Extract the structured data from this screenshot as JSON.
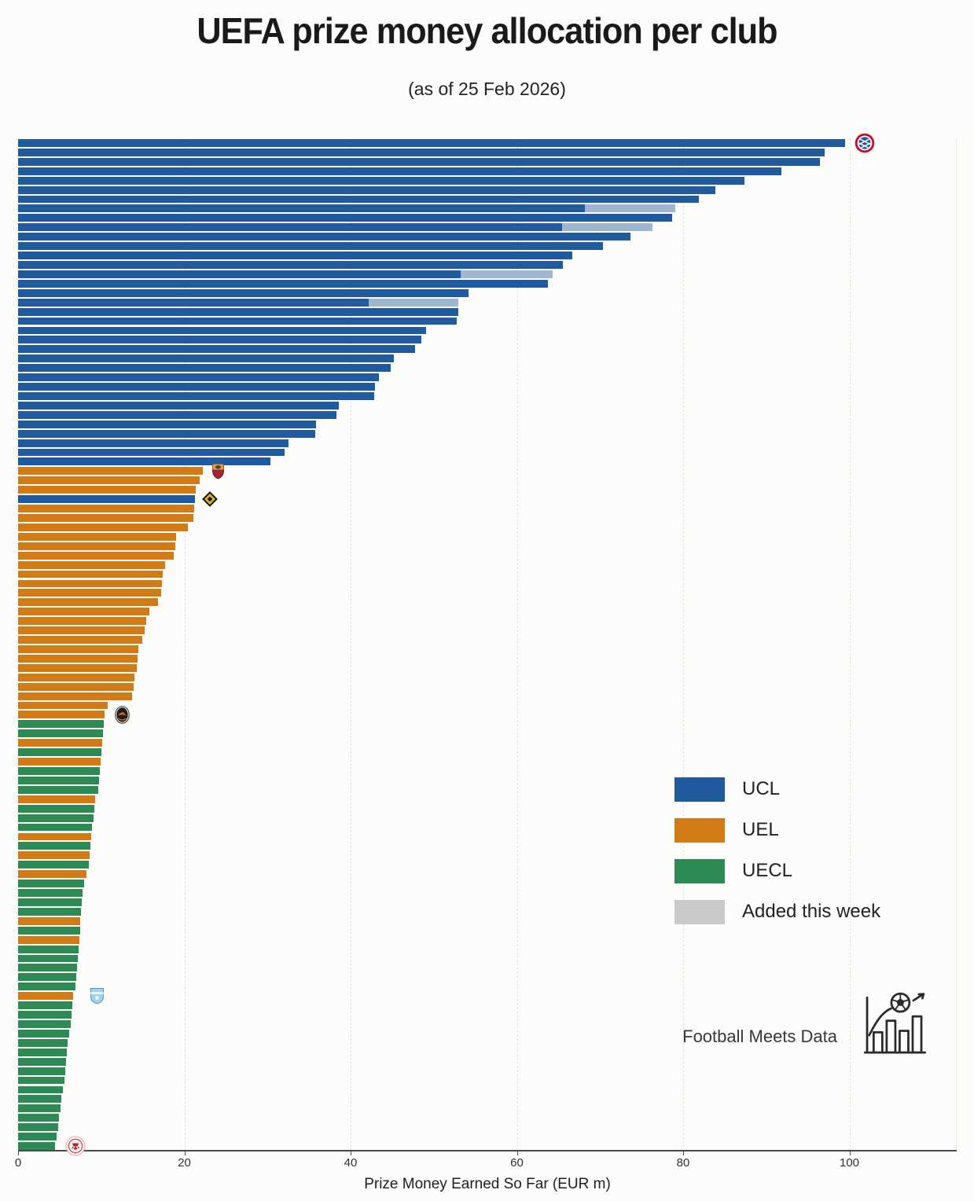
{
  "branding": {
    "label": "Football Meets Data"
  },
  "chart_data": {
    "type": "bar",
    "orientation": "horizontal",
    "title": "UEFA prize money allocation per club",
    "subtitle": "(as of 25 Feb 2026)",
    "xlabel": "Prize Money Earned So Far (EUR m)",
    "value_unit": "EUR m",
    "xlim": [
      0,
      113
    ],
    "x_ticks": [
      0,
      20,
      40,
      60,
      80,
      100
    ],
    "grid": "vertical-dashed",
    "legend_position": "center-right",
    "legend": [
      {
        "label": "UCL",
        "color": "#1f5b9e"
      },
      {
        "label": "UEL",
        "color": "#d07b15"
      },
      {
        "label": "UECL",
        "color": "#2d8a55"
      },
      {
        "label": "Added this week",
        "color": "#c9c9c9"
      }
    ],
    "colors": {
      "UCL": "#1f5b9e",
      "UEL": "#d07b15",
      "UECL": "#2d8a55",
      "added_segment_on_bar": "#9fb6d2",
      "added_legend_swatch": "#c9c9c9"
    },
    "bars": [
      {
        "competition": "UCL",
        "value": 99.5,
        "crest": "bayern-munich"
      },
      {
        "competition": "UCL",
        "value": 97.0
      },
      {
        "competition": "UCL",
        "value": 96.5
      },
      {
        "competition": "UCL",
        "value": 91.8
      },
      {
        "competition": "UCL",
        "value": 87.4
      },
      {
        "competition": "UCL",
        "value": 83.9
      },
      {
        "competition": "UCL",
        "value": 81.9
      },
      {
        "competition": "UCL",
        "value": 68.2,
        "added": 10.9
      },
      {
        "competition": "UCL",
        "value": 78.7
      },
      {
        "competition": "UCL",
        "value": 65.4,
        "added": 10.9
      },
      {
        "competition": "UCL",
        "value": 73.7
      },
      {
        "competition": "UCL",
        "value": 70.4
      },
      {
        "competition": "UCL",
        "value": 66.7
      },
      {
        "competition": "UCL",
        "value": 65.5
      },
      {
        "competition": "UCL",
        "value": 53.2,
        "added": 11.1
      },
      {
        "competition": "UCL",
        "value": 63.7
      },
      {
        "competition": "UCL",
        "value": 54.2
      },
      {
        "competition": "UCL",
        "value": 42.2,
        "added": 10.8
      },
      {
        "competition": "UCL",
        "value": 53.0
      },
      {
        "competition": "UCL",
        "value": 52.8
      },
      {
        "competition": "UCL",
        "value": 49.1
      },
      {
        "competition": "UCL",
        "value": 48.5
      },
      {
        "competition": "UCL",
        "value": 47.8
      },
      {
        "competition": "UCL",
        "value": 45.2
      },
      {
        "competition": "UCL",
        "value": 44.8
      },
      {
        "competition": "UCL",
        "value": 43.4
      },
      {
        "competition": "UCL",
        "value": 42.9
      },
      {
        "competition": "UCL",
        "value": 42.8
      },
      {
        "competition": "UCL",
        "value": 38.6
      },
      {
        "competition": "UCL",
        "value": 38.3
      },
      {
        "competition": "UCL",
        "value": 35.8
      },
      {
        "competition": "UCL",
        "value": 35.7
      },
      {
        "competition": "UCL",
        "value": 32.5
      },
      {
        "competition": "UCL",
        "value": 32.1
      },
      {
        "competition": "UCL",
        "value": 30.4
      },
      {
        "competition": "UEL",
        "value": 22.2,
        "crest": "as-roma"
      },
      {
        "competition": "UEL",
        "value": 21.8
      },
      {
        "competition": "UEL",
        "value": 21.4
      },
      {
        "competition": "UCL",
        "value": 21.3,
        "crest": "gold-diamond-club"
      },
      {
        "competition": "UEL",
        "value": 21.2
      },
      {
        "competition": "UEL",
        "value": 21.1
      },
      {
        "competition": "UEL",
        "value": 20.4
      },
      {
        "competition": "UEL",
        "value": 19.0
      },
      {
        "competition": "UEL",
        "value": 18.9
      },
      {
        "competition": "UEL",
        "value": 18.7
      },
      {
        "competition": "UEL",
        "value": 17.7
      },
      {
        "competition": "UEL",
        "value": 17.4
      },
      {
        "competition": "UEL",
        "value": 17.3
      },
      {
        "competition": "UEL",
        "value": 17.2
      },
      {
        "competition": "UEL",
        "value": 16.8
      },
      {
        "competition": "UEL",
        "value": 15.8
      },
      {
        "competition": "UEL",
        "value": 15.4
      },
      {
        "competition": "UEL",
        "value": 15.2
      },
      {
        "competition": "UEL",
        "value": 14.9
      },
      {
        "competition": "UEL",
        "value": 14.5
      },
      {
        "competition": "UEL",
        "value": 14.4
      },
      {
        "competition": "UEL",
        "value": 14.3
      },
      {
        "competition": "UEL",
        "value": 14.0
      },
      {
        "competition": "UEL",
        "value": 13.9
      },
      {
        "competition": "UEL",
        "value": 13.7
      },
      {
        "competition": "UEL",
        "value": 10.8
      },
      {
        "competition": "UEL",
        "value": 10.4,
        "crest": "shakhtar-donetsk"
      },
      {
        "competition": "UECL",
        "value": 10.3
      },
      {
        "competition": "UECL",
        "value": 10.2
      },
      {
        "competition": "UEL",
        "value": 10.1
      },
      {
        "competition": "UECL",
        "value": 10.0
      },
      {
        "competition": "UEL",
        "value": 9.9
      },
      {
        "competition": "UECL",
        "value": 9.8
      },
      {
        "competition": "UECL",
        "value": 9.7
      },
      {
        "competition": "UECL",
        "value": 9.6
      },
      {
        "competition": "UEL",
        "value": 9.3
      },
      {
        "competition": "UECL",
        "value": 9.2
      },
      {
        "competition": "UECL",
        "value": 9.1
      },
      {
        "competition": "UECL",
        "value": 8.9
      },
      {
        "competition": "UEL",
        "value": 8.8
      },
      {
        "competition": "UECL",
        "value": 8.7
      },
      {
        "competition": "UEL",
        "value": 8.6
      },
      {
        "competition": "UECL",
        "value": 8.5
      },
      {
        "competition": "UEL",
        "value": 8.2
      },
      {
        "competition": "UECL",
        "value": 7.9
      },
      {
        "competition": "UECL",
        "value": 7.8
      },
      {
        "competition": "UECL",
        "value": 7.7
      },
      {
        "competition": "UECL",
        "value": 7.6
      },
      {
        "competition": "UEL",
        "value": 7.5
      },
      {
        "competition": "UECL",
        "value": 7.5
      },
      {
        "competition": "UEL",
        "value": 7.4
      },
      {
        "competition": "UECL",
        "value": 7.3
      },
      {
        "competition": "UECL",
        "value": 7.2
      },
      {
        "competition": "UECL",
        "value": 7.1
      },
      {
        "competition": "UECL",
        "value": 7.0
      },
      {
        "competition": "UECL",
        "value": 6.9
      },
      {
        "competition": "UEL",
        "value": 6.6,
        "crest": "malmo-ff"
      },
      {
        "competition": "UECL",
        "value": 6.5
      },
      {
        "competition": "UECL",
        "value": 6.4
      },
      {
        "competition": "UECL",
        "value": 6.3
      },
      {
        "competition": "UECL",
        "value": 6.1
      },
      {
        "competition": "UECL",
        "value": 6.0
      },
      {
        "competition": "UECL",
        "value": 5.9
      },
      {
        "competition": "UECL",
        "value": 5.8
      },
      {
        "competition": "UECL",
        "value": 5.7
      },
      {
        "competition": "UECL",
        "value": 5.6
      },
      {
        "competition": "UECL",
        "value": 5.4
      },
      {
        "competition": "UECL",
        "value": 5.2
      },
      {
        "competition": "UECL",
        "value": 5.1
      },
      {
        "competition": "UECL",
        "value": 4.9
      },
      {
        "competition": "UECL",
        "value": 4.8
      },
      {
        "competition": "UECL",
        "value": 4.6
      },
      {
        "competition": "UECL",
        "value": 4.4,
        "crest": "red-white-club"
      }
    ]
  }
}
